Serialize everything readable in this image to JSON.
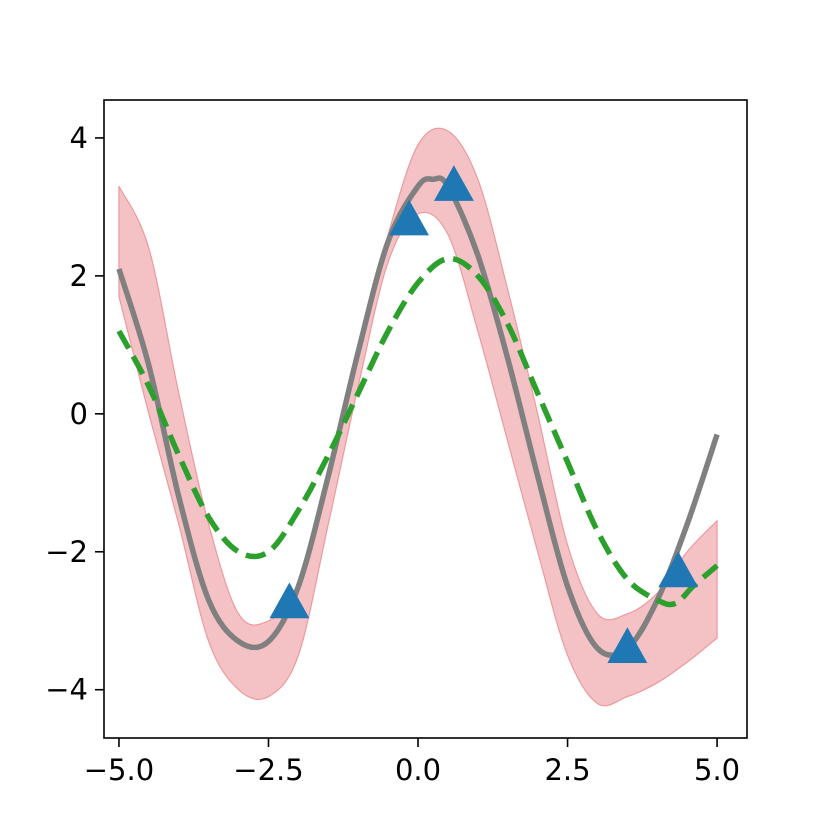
{
  "chart_data": {
    "type": "line",
    "title": "",
    "xlabel": "",
    "ylabel": "",
    "xlim": [
      -5.25,
      5.5
    ],
    "ylim": [
      -4.7,
      4.55
    ],
    "grid": false,
    "legend": "none",
    "x_ticks": [
      {
        "value": -5.0,
        "label": "−5.0"
      },
      {
        "value": -2.5,
        "label": "−2.5"
      },
      {
        "value": 0.0,
        "label": "0.0"
      },
      {
        "value": 2.5,
        "label": "2.5"
      },
      {
        "value": 5.0,
        "label": "5.0"
      }
    ],
    "y_ticks": [
      {
        "value": -4,
        "label": "−4"
      },
      {
        "value": -2,
        "label": "−2"
      },
      {
        "value": 0,
        "label": "0"
      },
      {
        "value": 2,
        "label": "2"
      },
      {
        "value": 4,
        "label": "4"
      }
    ],
    "band": {
      "color": "#f4c2c4",
      "edge_color": "#ec9a9e",
      "x": [
        -5.0,
        -4.5,
        -4.0,
        -3.5,
        -3.0,
        -2.5,
        -2.0,
        -1.5,
        -1.0,
        -0.5,
        0.0,
        0.5,
        1.0,
        1.5,
        2.0,
        2.5,
        3.0,
        3.5,
        4.0,
        4.5,
        5.0
      ],
      "lower": [
        1.7,
        0.0,
        -1.6,
        -3.3,
        -4.0,
        -4.1,
        -3.5,
        -1.6,
        0.4,
        2.2,
        2.9,
        2.6,
        1.2,
        -0.4,
        -2.0,
        -3.5,
        -4.2,
        -4.1,
        -3.9,
        -3.6,
        -3.25
      ],
      "upper": [
        3.3,
        2.4,
        0.3,
        -1.6,
        -2.9,
        -3.0,
        -2.5,
        -0.8,
        0.9,
        2.6,
        3.9,
        4.1,
        3.4,
        1.8,
        0.0,
        -1.9,
        -2.9,
        -2.9,
        -2.6,
        -2.0,
        -1.55
      ]
    },
    "series": [
      {
        "style": "solid",
        "color": "#808080",
        "x": [
          -5.0,
          -4.5,
          -4.0,
          -3.5,
          -3.0,
          -2.5,
          -2.0,
          -1.5,
          -1.0,
          -0.5,
          0.0,
          0.25,
          0.5,
          1.0,
          1.5,
          2.0,
          2.5,
          3.0,
          3.5,
          4.0,
          4.5,
          5.0
        ],
        "y": [
          2.1,
          0.7,
          -1.2,
          -2.7,
          -3.3,
          -3.3,
          -2.5,
          -0.9,
          0.9,
          2.5,
          3.3,
          3.4,
          3.3,
          2.3,
          0.8,
          -0.9,
          -2.5,
          -3.4,
          -3.4,
          -2.7,
          -1.6,
          -0.3
        ]
      },
      {
        "style": "dashed",
        "color": "#2ca02c",
        "x": [
          -5.0,
          -4.5,
          -4.0,
          -3.5,
          -3.0,
          -2.5,
          -2.0,
          -1.5,
          -1.0,
          -0.5,
          0.0,
          0.5,
          1.0,
          1.5,
          2.0,
          2.5,
          3.0,
          3.5,
          4.0,
          4.3,
          4.6,
          5.0
        ],
        "y": [
          1.2,
          0.4,
          -0.6,
          -1.5,
          -2.0,
          -2.0,
          -1.4,
          -0.6,
          0.3,
          1.2,
          1.9,
          2.25,
          2.0,
          1.3,
          0.3,
          -0.7,
          -1.7,
          -2.4,
          -2.7,
          -2.75,
          -2.5,
          -2.2
        ]
      }
    ],
    "points": {
      "marker": "triangle",
      "color": "#1f77b4",
      "x": [
        -2.15,
        -0.15,
        0.6,
        3.5,
        4.35
      ],
      "y": [
        -2.75,
        2.8,
        3.3,
        -3.4,
        -2.3
      ]
    }
  }
}
